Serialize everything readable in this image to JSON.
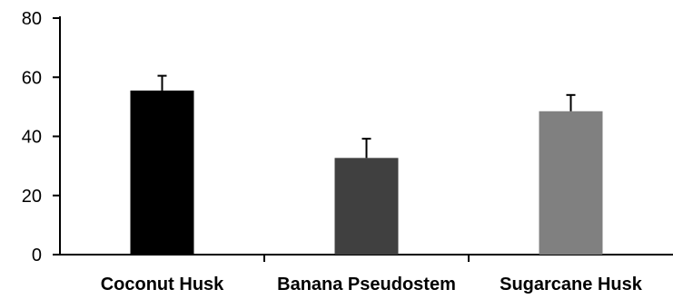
{
  "chart_data": {
    "type": "bar",
    "title": "",
    "xlabel": "",
    "ylabel": "",
    "categories": [
      "Coconut Husk",
      "Banana Pseudostem",
      "Sugarcane Husk"
    ],
    "values": [
      55.5,
      32.7,
      48.5
    ],
    "error_bars": [
      5.0,
      6.5,
      5.5
    ],
    "bar_colors": [
      "#000000",
      "#404040",
      "#808080"
    ],
    "ylim": [
      0,
      80
    ],
    "yticks": [
      "0",
      "20",
      "40",
      "60",
      "80"
    ],
    "grid": false,
    "legend": "none"
  }
}
